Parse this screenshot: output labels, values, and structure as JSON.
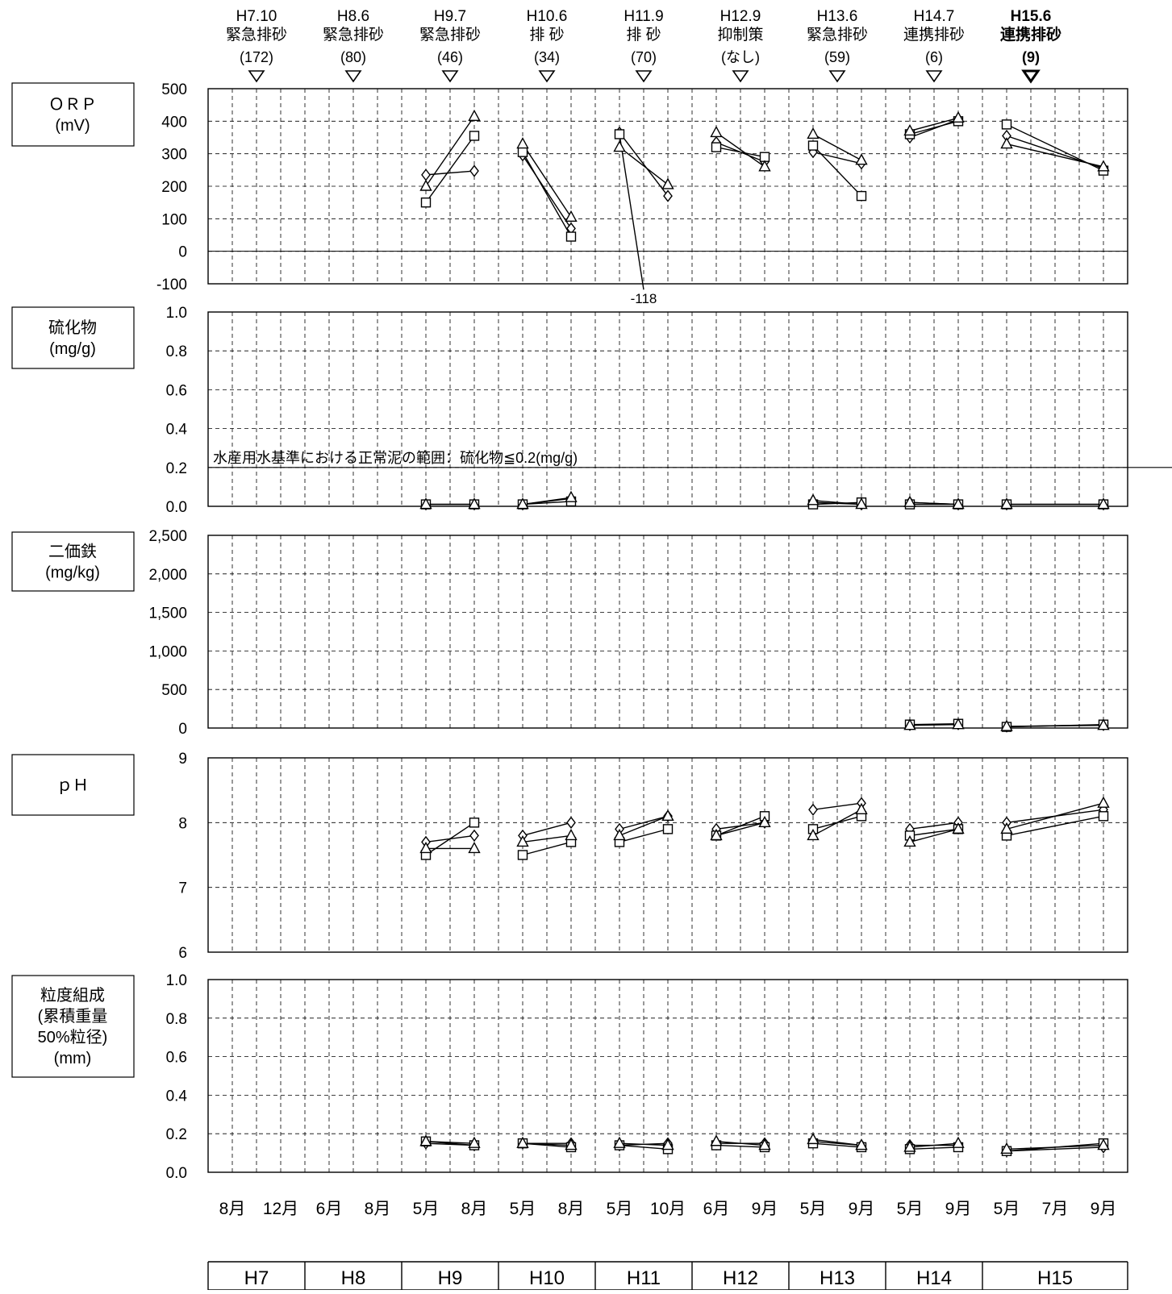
{
  "events": [
    {
      "period": "H7.10",
      "label": "緊急排砂",
      "count": "(172)",
      "bold": false
    },
    {
      "period": "H8.6",
      "label": "緊急排砂",
      "count": "(80)",
      "bold": false
    },
    {
      "period": "H9.7",
      "label": "緊急排砂",
      "count": "(46)",
      "bold": false
    },
    {
      "period": "H10.6",
      "label": "排 砂",
      "count": "(34)",
      "bold": false
    },
    {
      "period": "H11.9",
      "label": "排 砂",
      "count": "(70)",
      "bold": false
    },
    {
      "period": "H12.9",
      "label": "抑制策",
      "count": "(なし)",
      "bold": false
    },
    {
      "period": "H13.6",
      "label": "緊急排砂",
      "count": "(59)",
      "bold": false
    },
    {
      "period": "H14.7",
      "label": "連携排砂",
      "count": "(6)",
      "bold": false
    },
    {
      "period": "H15.6",
      "label": "連携排砂",
      "count": "(9)",
      "bold": true
    }
  ],
  "x_month_labels": [
    "8月",
    "12月",
    "6月",
    "8月",
    "5月",
    "8月",
    "5月",
    "8月",
    "5月",
    "10月",
    "6月",
    "9月",
    "5月",
    "9月",
    "5月",
    "9月",
    "5月",
    "7月",
    "9月"
  ],
  "x_year_labels": [
    {
      "label": "H7",
      "span": 2
    },
    {
      "label": "H8",
      "span": 2
    },
    {
      "label": "H9",
      "span": 2
    },
    {
      "label": "H10",
      "span": 2
    },
    {
      "label": "H11",
      "span": 2
    },
    {
      "label": "H12",
      "span": 2
    },
    {
      "label": "H13",
      "span": 2
    },
    {
      "label": "H14",
      "span": 2
    },
    {
      "label": "H15",
      "span": 3
    }
  ],
  "chart_data": [
    {
      "type": "line",
      "panel": "ORP",
      "ylabel_lines": [
        "ＯＲＰ",
        "(mV)"
      ],
      "ylim": [
        -100,
        500
      ],
      "yticks": [
        "500",
        "400",
        "300",
        "200",
        "100",
        "0",
        "-100"
      ],
      "zero_line": true,
      "grid": true,
      "annotation": {
        "text": "-118",
        "x_index": 8.5,
        "y": -118
      },
      "segments": [
        {
          "marker": "diamond",
          "x": [
            4,
            5
          ],
          "y": [
            235,
            247
          ]
        },
        {
          "marker": "square",
          "x": [
            4,
            5
          ],
          "y": [
            150,
            355
          ]
        },
        {
          "marker": "triangle",
          "x": [
            4,
            5
          ],
          "y": [
            200,
            415
          ]
        },
        {
          "marker": "diamond",
          "x": [
            6,
            7
          ],
          "y": [
            295,
            70
          ]
        },
        {
          "marker": "square",
          "x": [
            6,
            7
          ],
          "y": [
            305,
            45
          ]
        },
        {
          "marker": "triangle",
          "x": [
            6,
            7
          ],
          "y": [
            330,
            105
          ]
        },
        {
          "marker": "diamond",
          "x": [
            8,
            9
          ],
          "y": [
            365,
            170
          ]
        },
        {
          "marker": "square",
          "x": [
            8,
            8.5
          ],
          "y": [
            360,
            -118
          ]
        },
        {
          "marker": "triangle",
          "x": [
            8,
            9
          ],
          "y": [
            320,
            205
          ]
        },
        {
          "marker": "diamond",
          "x": [
            10,
            11
          ],
          "y": [
            335,
            275
          ]
        },
        {
          "marker": "square",
          "x": [
            10,
            11
          ],
          "y": [
            320,
            290
          ]
        },
        {
          "marker": "triangle",
          "x": [
            10,
            11
          ],
          "y": [
            365,
            260
          ]
        },
        {
          "marker": "diamond",
          "x": [
            12,
            13
          ],
          "y": [
            305,
            270
          ]
        },
        {
          "marker": "square",
          "x": [
            12,
            13
          ],
          "y": [
            325,
            170
          ]
        },
        {
          "marker": "triangle",
          "x": [
            12,
            13
          ],
          "y": [
            360,
            280
          ]
        },
        {
          "marker": "diamond",
          "x": [
            14,
            15
          ],
          "y": [
            350,
            405
          ]
        },
        {
          "marker": "square",
          "x": [
            14,
            15
          ],
          "y": [
            360,
            400
          ]
        },
        {
          "marker": "triangle",
          "x": [
            14,
            15
          ],
          "y": [
            370,
            410
          ]
        },
        {
          "marker": "diamond",
          "x": [
            16,
            18
          ],
          "y": [
            355,
            255
          ]
        },
        {
          "marker": "square",
          "x": [
            16,
            18
          ],
          "y": [
            390,
            248
          ]
        },
        {
          "marker": "triangle",
          "x": [
            16,
            18
          ],
          "y": [
            330,
            260
          ]
        }
      ]
    },
    {
      "type": "line",
      "panel": "sulfide",
      "ylabel_lines": [
        "硫化物",
        "(mg/g)"
      ],
      "ylim": [
        0,
        1.0
      ],
      "yticks": [
        "1.0",
        "0.8",
        "0.6",
        "0.4",
        "0.2",
        "0.0"
      ],
      "grid": true,
      "reference_line": {
        "y": 0.2,
        "label": "水産用水基準における正常泥の範囲：硫化物≦0.2(mg/g)"
      },
      "segments": [
        {
          "marker": "diamond",
          "x": [
            4,
            5
          ],
          "y": [
            0.01,
            0.01
          ]
        },
        {
          "marker": "square",
          "x": [
            4,
            5
          ],
          "y": [
            0.01,
            0.01
          ]
        },
        {
          "marker": "triangle",
          "x": [
            4,
            5
          ],
          "y": [
            0.01,
            0.01
          ]
        },
        {
          "marker": "diamond",
          "x": [
            6,
            7
          ],
          "y": [
            0.01,
            0.04
          ]
        },
        {
          "marker": "square",
          "x": [
            6,
            7
          ],
          "y": [
            0.01,
            0.025
          ]
        },
        {
          "marker": "triangle",
          "x": [
            6,
            7
          ],
          "y": [
            0.01,
            0.045
          ]
        },
        {
          "marker": "diamond",
          "x": [
            12,
            13
          ],
          "y": [
            0.02,
            0.01
          ]
        },
        {
          "marker": "square",
          "x": [
            12,
            13
          ],
          "y": [
            0.01,
            0.02
          ]
        },
        {
          "marker": "triangle",
          "x": [
            12,
            13
          ],
          "y": [
            0.03,
            0.01
          ]
        },
        {
          "marker": "diamond",
          "x": [
            14,
            15
          ],
          "y": [
            0.02,
            0.01
          ]
        },
        {
          "marker": "square",
          "x": [
            14,
            15
          ],
          "y": [
            0.01,
            0.01
          ]
        },
        {
          "marker": "triangle",
          "x": [
            14,
            15
          ],
          "y": [
            0.02,
            0.01
          ]
        },
        {
          "marker": "diamond",
          "x": [
            16,
            18
          ],
          "y": [
            0.01,
            0.01
          ]
        },
        {
          "marker": "square",
          "x": [
            16,
            18
          ],
          "y": [
            0.01,
            0.01
          ]
        },
        {
          "marker": "triangle",
          "x": [
            16,
            18
          ],
          "y": [
            0.01,
            0.01
          ]
        }
      ]
    },
    {
      "type": "line",
      "panel": "ferrous_iron",
      "ylabel_lines": [
        "二価鉄",
        "(mg/kg)"
      ],
      "ylim": [
        0,
        2500
      ],
      "yticks": [
        "2,500",
        "2,000",
        "1,500",
        "1,000",
        "500",
        "0"
      ],
      "grid": true,
      "segments": [
        {
          "marker": "diamond",
          "x": [
            14,
            15
          ],
          "y": [
            40,
            50
          ]
        },
        {
          "marker": "square",
          "x": [
            14,
            15
          ],
          "y": [
            45,
            55
          ]
        },
        {
          "marker": "triangle",
          "x": [
            14,
            15
          ],
          "y": [
            35,
            45
          ]
        },
        {
          "marker": "diamond",
          "x": [
            16,
            18
          ],
          "y": [
            20,
            40
          ]
        },
        {
          "marker": "square",
          "x": [
            16,
            18
          ],
          "y": [
            15,
            45
          ]
        },
        {
          "marker": "triangle",
          "x": [
            16,
            18
          ],
          "y": [
            20,
            35
          ]
        }
      ]
    },
    {
      "type": "line",
      "panel": "pH",
      "ylabel_lines": [
        "ｐＨ"
      ],
      "ylim": [
        6,
        9
      ],
      "yticks": [
        "9",
        "8",
        "7",
        "6"
      ],
      "grid": true,
      "segments": [
        {
          "marker": "diamond",
          "x": [
            4,
            5
          ],
          "y": [
            7.7,
            7.8
          ]
        },
        {
          "marker": "square",
          "x": [
            4,
            5
          ],
          "y": [
            7.5,
            8.0
          ]
        },
        {
          "marker": "triangle",
          "x": [
            4,
            5
          ],
          "y": [
            7.6,
            7.6
          ]
        },
        {
          "marker": "diamond",
          "x": [
            6,
            7
          ],
          "y": [
            7.8,
            8.0
          ]
        },
        {
          "marker": "square",
          "x": [
            6,
            7
          ],
          "y": [
            7.5,
            7.7
          ]
        },
        {
          "marker": "triangle",
          "x": [
            6,
            7
          ],
          "y": [
            7.7,
            7.8
          ]
        },
        {
          "marker": "diamond",
          "x": [
            8,
            9
          ],
          "y": [
            7.9,
            8.1
          ]
        },
        {
          "marker": "square",
          "x": [
            8,
            9
          ],
          "y": [
            7.7,
            7.9
          ]
        },
        {
          "marker": "triangle",
          "x": [
            8,
            9
          ],
          "y": [
            7.8,
            8.1
          ]
        },
        {
          "marker": "diamond",
          "x": [
            10,
            11
          ],
          "y": [
            7.9,
            8.0
          ]
        },
        {
          "marker": "square",
          "x": [
            10,
            11
          ],
          "y": [
            7.8,
            8.1
          ]
        },
        {
          "marker": "triangle",
          "x": [
            10,
            11
          ],
          "y": [
            7.8,
            8.0
          ]
        },
        {
          "marker": "diamond",
          "x": [
            12,
            13
          ],
          "y": [
            8.2,
            8.3
          ]
        },
        {
          "marker": "square",
          "x": [
            12,
            13
          ],
          "y": [
            7.9,
            8.1
          ]
        },
        {
          "marker": "triangle",
          "x": [
            12,
            13
          ],
          "y": [
            7.8,
            8.2
          ]
        },
        {
          "marker": "diamond",
          "x": [
            14,
            15
          ],
          "y": [
            7.9,
            8.0
          ]
        },
        {
          "marker": "square",
          "x": [
            14,
            15
          ],
          "y": [
            7.8,
            7.9
          ]
        },
        {
          "marker": "triangle",
          "x": [
            14,
            15
          ],
          "y": [
            7.7,
            7.9
          ]
        },
        {
          "marker": "diamond",
          "x": [
            16,
            18
          ],
          "y": [
            8.0,
            8.2
          ]
        },
        {
          "marker": "square",
          "x": [
            16,
            18
          ],
          "y": [
            7.8,
            8.1
          ]
        },
        {
          "marker": "triangle",
          "x": [
            16,
            18
          ],
          "y": [
            7.9,
            8.3
          ]
        }
      ]
    },
    {
      "type": "line",
      "panel": "grain_size",
      "ylabel_lines": [
        "粒度組成",
        "(累積重量",
        "50%粒径)",
        "(mm)"
      ],
      "ylim": [
        0,
        1.0
      ],
      "yticks": [
        "1.0",
        "0.8",
        "0.6",
        "0.4",
        "0.2",
        "0.0"
      ],
      "grid": true,
      "segments": [
        {
          "marker": "diamond",
          "x": [
            4,
            5
          ],
          "y": [
            0.15,
            0.14
          ]
        },
        {
          "marker": "square",
          "x": [
            4,
            5
          ],
          "y": [
            0.16,
            0.14
          ]
        },
        {
          "marker": "triangle",
          "x": [
            4,
            5
          ],
          "y": [
            0.16,
            0.15
          ]
        },
        {
          "marker": "diamond",
          "x": [
            6,
            7
          ],
          "y": [
            0.15,
            0.15
          ]
        },
        {
          "marker": "square",
          "x": [
            6,
            7
          ],
          "y": [
            0.15,
            0.13
          ]
        },
        {
          "marker": "triangle",
          "x": [
            6,
            7
          ],
          "y": [
            0.15,
            0.14
          ]
        },
        {
          "marker": "diamond",
          "x": [
            8,
            9
          ],
          "y": [
            0.14,
            0.15
          ]
        },
        {
          "marker": "square",
          "x": [
            8,
            9
          ],
          "y": [
            0.14,
            0.12
          ]
        },
        {
          "marker": "triangle",
          "x": [
            8,
            9
          ],
          "y": [
            0.15,
            0.14
          ]
        },
        {
          "marker": "diamond",
          "x": [
            10,
            11
          ],
          "y": [
            0.15,
            0.15
          ]
        },
        {
          "marker": "square",
          "x": [
            10,
            11
          ],
          "y": [
            0.14,
            0.13
          ]
        },
        {
          "marker": "triangle",
          "x": [
            10,
            11
          ],
          "y": [
            0.16,
            0.14
          ]
        },
        {
          "marker": "diamond",
          "x": [
            12,
            13
          ],
          "y": [
            0.16,
            0.14
          ]
        },
        {
          "marker": "square",
          "x": [
            12,
            13
          ],
          "y": [
            0.15,
            0.13
          ]
        },
        {
          "marker": "triangle",
          "x": [
            12,
            13
          ],
          "y": [
            0.17,
            0.14
          ]
        },
        {
          "marker": "diamond",
          "x": [
            14,
            15
          ],
          "y": [
            0.14,
            0.14
          ]
        },
        {
          "marker": "square",
          "x": [
            14,
            15
          ],
          "y": [
            0.12,
            0.13
          ]
        },
        {
          "marker": "triangle",
          "x": [
            14,
            15
          ],
          "y": [
            0.13,
            0.15
          ]
        },
        {
          "marker": "diamond",
          "x": [
            16,
            18
          ],
          "y": [
            0.11,
            0.13
          ]
        },
        {
          "marker": "square",
          "x": [
            16,
            18
          ],
          "y": [
            0.11,
            0.15
          ]
        },
        {
          "marker": "triangle",
          "x": [
            16,
            18
          ],
          "y": [
            0.12,
            0.14
          ]
        }
      ]
    }
  ]
}
